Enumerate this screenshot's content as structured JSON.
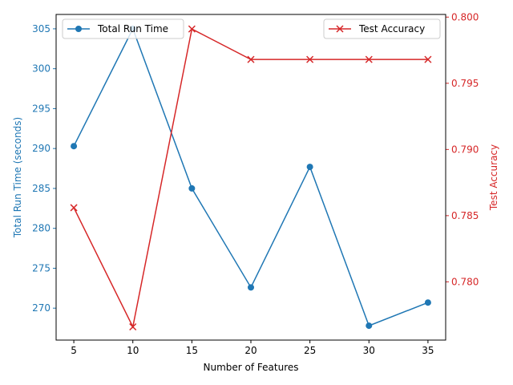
{
  "chart_data": {
    "type": "line",
    "title": "",
    "xlabel": "Number of Features",
    "x": [
      5,
      10,
      15,
      20,
      25,
      30,
      35
    ],
    "x_ticks": [
      5,
      10,
      15,
      20,
      25,
      30,
      35
    ],
    "grid": false,
    "left_axis": {
      "label": "Total Run Time (seconds)",
      "color": "#1f77b4",
      "ylim": [
        266,
        306.8
      ],
      "ticks": [
        270,
        275,
        280,
        285,
        290,
        295,
        300,
        305
      ]
    },
    "right_axis": {
      "label": "Test Accuracy",
      "color": "#d62728",
      "ylim": [
        0.7756,
        0.8002
      ],
      "ticks": [
        0.78,
        0.785,
        0.79,
        0.795,
        0.8
      ],
      "tick_format": 3
    },
    "series": [
      {
        "name": "Total Run Time",
        "axis": "left",
        "marker": "circle",
        "color": "#1f77b4",
        "values": [
          290.3,
          305.0,
          285.0,
          272.6,
          287.7,
          267.8,
          270.7
        ],
        "legend_position": "upper left"
      },
      {
        "name": "Test Accuracy",
        "axis": "right",
        "marker": "x",
        "color": "#d62728",
        "values": [
          0.7856,
          0.7766,
          0.7991,
          0.7968,
          0.7968,
          0.7968,
          0.7968
        ],
        "legend_position": "upper right"
      }
    ]
  }
}
